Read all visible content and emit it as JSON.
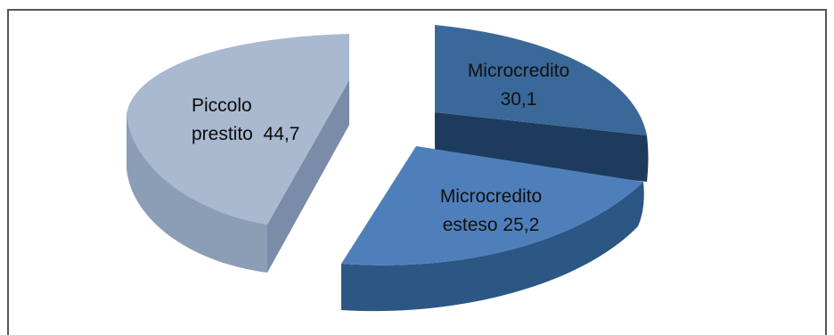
{
  "chart_data": {
    "type": "pie",
    "style": "3d-exploded",
    "title": "",
    "slices": [
      {
        "label_lines": [
          "Microcredito",
          "30,1"
        ],
        "value": 30.1,
        "colors": {
          "top": "#3a6898",
          "side": "#1d3b5c"
        }
      },
      {
        "label_lines": [
          "Microcredito",
          "esteso 25,2"
        ],
        "value": 25.2,
        "colors": {
          "top": "#4f7fbb",
          "side": "#2c5683"
        }
      },
      {
        "label_lines": [
          "Piccolo",
          "prestito  44,7"
        ],
        "value": 44.7,
        "colors": {
          "top": "#a9b9d0",
          "side": "#8799b3"
        }
      }
    ],
    "legend": "none"
  }
}
